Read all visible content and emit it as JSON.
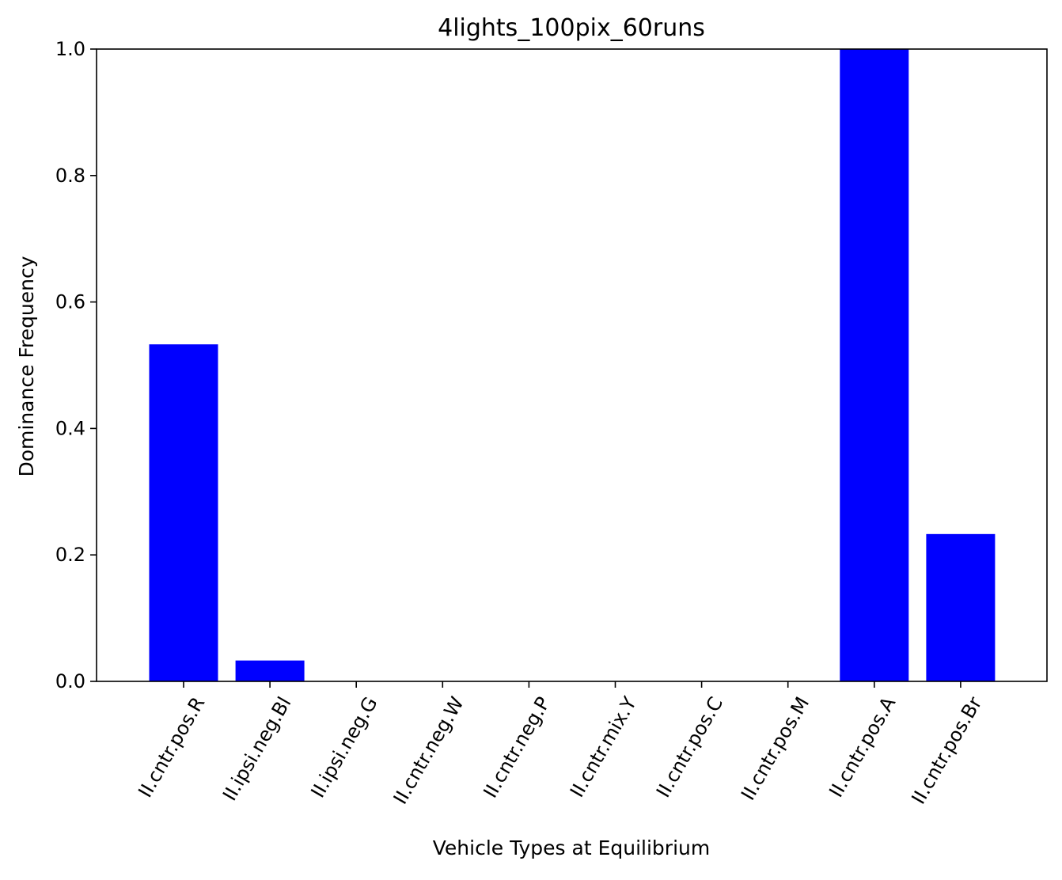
{
  "chart_data": {
    "type": "bar",
    "title": "4lights_100pix_60runs",
    "xlabel": "Vehicle Types at Equilibrium",
    "ylabel": "Dominance Frequency",
    "categories": [
      "II.cntr.pos.R",
      "II.ipsi.neg.Bl",
      "II.ipsi.neg.G",
      "II.cntr.neg.W",
      "II.cntr.neg.P",
      "II.cntr.mix.Y",
      "II.cntr.pos.C",
      "II.cntr.pos.M",
      "II.cntr.pos.A",
      "II.cntr.pos.Br"
    ],
    "values": [
      0.533,
      0.033,
      0.0,
      0.0,
      0.0,
      0.0,
      0.0,
      0.0,
      1.0,
      0.233
    ],
    "ylim": [
      0,
      1.0
    ],
    "yticks": [
      "0.0",
      "0.2",
      "0.4",
      "0.6",
      "0.8",
      "1.0"
    ],
    "bar_color": "#0000ff",
    "grid": false,
    "legend": "none"
  }
}
